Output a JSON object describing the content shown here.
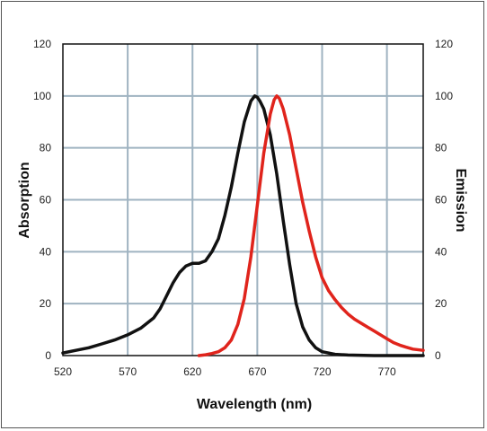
{
  "chart_data": {
    "type": "line",
    "title": "",
    "xlabel": "Wavelength (nm)",
    "ylabel_left": "Absorption",
    "ylabel_right": "Emission",
    "xlim": [
      520,
      798
    ],
    "ylim": [
      0,
      120
    ],
    "x_ticks": [
      520,
      570,
      620,
      670,
      720,
      770
    ],
    "y_ticks": [
      0,
      20,
      40,
      60,
      80,
      100,
      120
    ],
    "grid": true,
    "colors": {
      "grid": "#9fb3c1",
      "absorption": "#111111",
      "emission": "#e0241c"
    },
    "series": [
      {
        "key": "absorption",
        "x": [
          520,
          530,
          540,
          550,
          560,
          570,
          580,
          590,
          595,
          600,
          605,
          610,
          615,
          620,
          625,
          630,
          635,
          640,
          645,
          650,
          655,
          660,
          665,
          668,
          670,
          672,
          675,
          680,
          685,
          690,
          695,
          700,
          705,
          710,
          715,
          720,
          730,
          740,
          760,
          780,
          798
        ],
        "y": [
          1,
          2,
          3,
          4.5,
          6,
          8,
          10.5,
          14.5,
          18,
          23,
          28,
          32,
          34.5,
          35.5,
          35.5,
          36.5,
          40,
          45,
          54,
          65,
          78,
          90,
          98,
          100,
          99.5,
          98,
          95,
          85,
          70,
          52,
          35,
          20,
          11,
          6,
          3,
          1.5,
          0.5,
          0.2,
          0,
          0,
          0
        ]
      },
      {
        "key": "emission",
        "x": [
          625,
          630,
          635,
          640,
          645,
          650,
          655,
          660,
          665,
          670,
          675,
          680,
          683,
          685,
          687,
          690,
          695,
          700,
          705,
          710,
          715,
          720,
          725,
          730,
          735,
          740,
          745,
          750,
          755,
          760,
          765,
          770,
          775,
          780,
          785,
          790,
          798
        ],
        "y": [
          0,
          0.3,
          0.8,
          1.5,
          3,
          6,
          12,
          22,
          38,
          58,
          78,
          93,
          98.5,
          100,
          99,
          95,
          85,
          72,
          59,
          48,
          38,
          30,
          25,
          21.5,
          18.5,
          16,
          14,
          12.5,
          11,
          9.5,
          8,
          6.5,
          5,
          4,
          3.2,
          2.5,
          2
        ]
      }
    ]
  }
}
